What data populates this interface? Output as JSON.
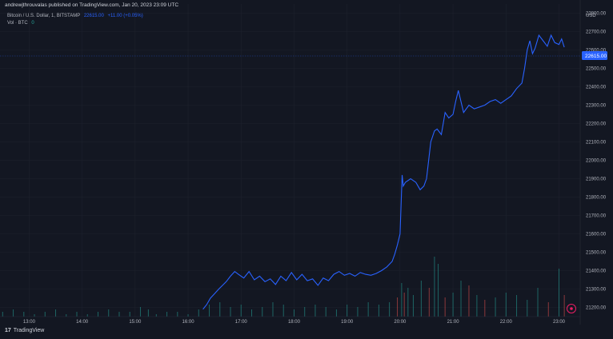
{
  "header": {
    "publisher": "andrewjthrouvalas published on TradingView.com, Jan 20, 2023 23:09 UTC",
    "symbol": "Bitcoin / U.S. Dollar, 1, BITSTAMP",
    "last_price": "22615.00",
    "change": "+11.00 (+0.05%)",
    "volume_label": "Vol · BTC",
    "volume_value": "0"
  },
  "branding": {
    "logo_text": "17",
    "name": "TradingView"
  },
  "colors": {
    "background": "#131722",
    "line": "#2962ff",
    "vol_up": "#26a69a",
    "vol_down": "#ef5350",
    "text": "#b2b5be"
  },
  "chart_data": {
    "type": "line",
    "ylabel": "USD",
    "ylim": [
      21150,
      22850
    ],
    "yticks": [
      "22800.00",
      "22700.00",
      "22600.00",
      "22500.00",
      "22400.00",
      "22300.00",
      "22200.00",
      "22100.00",
      "22000.00",
      "21900.00",
      "21800.00",
      "21700.00",
      "21600.00",
      "21500.00",
      "21400.00",
      "21300.00",
      "21200.00"
    ],
    "xticks": [
      "13:00",
      "14:00",
      "15:00",
      "16:00",
      "17:00",
      "18:00",
      "19:00",
      "20:00",
      "21:00",
      "22:00",
      "23:00"
    ],
    "x_range_hours": [
      12.45,
      23.4
    ],
    "series": [
      {
        "x_hours": [
          16.28,
          16.35,
          16.42,
          16.5,
          16.58,
          16.65,
          16.72,
          16.8,
          16.88,
          16.95,
          17.05,
          17.15,
          17.25,
          17.35,
          17.45,
          17.55,
          17.65,
          17.75,
          17.85,
          17.95,
          18.05,
          18.15,
          18.25,
          18.35,
          18.45,
          18.55,
          18.65,
          18.75,
          18.85,
          18.95,
          19.05,
          19.15,
          19.25,
          19.35,
          19.45,
          19.55,
          19.65,
          19.75,
          19.85,
          19.9,
          19.95,
          20.0,
          20.04,
          20.06,
          20.1,
          20.2,
          20.3,
          20.38,
          20.45,
          20.5,
          20.58,
          20.65,
          20.7,
          20.78,
          20.85,
          20.92,
          21.0,
          21.05,
          21.1,
          21.2,
          21.3,
          21.4,
          21.5,
          21.6,
          21.7,
          21.8,
          21.9,
          22.0,
          22.1,
          22.2,
          22.3,
          22.35,
          22.4,
          22.45,
          22.5,
          22.55,
          22.62,
          22.7,
          22.78,
          22.85,
          22.92,
          23.0,
          23.05,
          23.1
        ],
        "values": [
          21190,
          21215,
          21250,
          21275,
          21300,
          21320,
          21340,
          21370,
          21395,
          21380,
          21360,
          21395,
          21350,
          21370,
          21340,
          21355,
          21325,
          21370,
          21345,
          21390,
          21350,
          21380,
          21345,
          21355,
          21320,
          21360,
          21345,
          21380,
          21395,
          21375,
          21385,
          21370,
          21390,
          21380,
          21375,
          21385,
          21400,
          21420,
          21450,
          21490,
          21540,
          21600,
          21920,
          21860,
          21880,
          21900,
          21880,
          21840,
          21860,
          21900,
          22100,
          22160,
          22170,
          22140,
          22260,
          22230,
          22250,
          22320,
          22380,
          22260,
          22300,
          22280,
          22290,
          22300,
          22320,
          22330,
          22310,
          22330,
          22350,
          22390,
          22420,
          22500,
          22600,
          22650,
          22580,
          22610,
          22680,
          22650,
          22620,
          22680,
          22640,
          22630,
          22660,
          22615
        ]
      }
    ],
    "volume": {
      "x_hours": [
        12.5,
        12.7,
        12.9,
        13.1,
        13.3,
        13.5,
        13.7,
        13.9,
        14.1,
        14.3,
        14.5,
        14.7,
        14.9,
        15.1,
        15.25,
        15.4,
        15.6,
        15.8,
        16.0,
        16.2,
        16.4,
        16.6,
        16.8,
        17.0,
        17.2,
        17.4,
        17.6,
        17.8,
        18.0,
        18.2,
        18.4,
        18.6,
        18.8,
        19.0,
        19.2,
        19.4,
        19.6,
        19.8,
        19.95,
        20.03,
        20.08,
        20.15,
        20.25,
        20.4,
        20.55,
        20.65,
        20.72,
        20.85,
        21.0,
        21.15,
        21.3,
        21.45,
        21.6,
        21.8,
        22.0,
        22.2,
        22.4,
        22.6,
        22.8,
        23.0,
        23.1
      ],
      "values": [
        2,
        3,
        2,
        1,
        2,
        3,
        1,
        2,
        1,
        2,
        3,
        2,
        2,
        4,
        3,
        1,
        2,
        2,
        1,
        3,
        5,
        6,
        4,
        5,
        3,
        4,
        6,
        5,
        3,
        4,
        5,
        4,
        3,
        5,
        4,
        6,
        5,
        6,
        8,
        14,
        10,
        12,
        9,
        15,
        12,
        25,
        22,
        8,
        10,
        15,
        13,
        9,
        7,
        8,
        10,
        9,
        7,
        12,
        6,
        20,
        9
      ],
      "down": [
        false,
        false,
        false,
        false,
        false,
        false,
        false,
        false,
        false,
        false,
        false,
        false,
        false,
        false,
        false,
        false,
        false,
        false,
        false,
        false,
        false,
        false,
        false,
        false,
        false,
        false,
        false,
        false,
        false,
        false,
        false,
        false,
        false,
        false,
        false,
        false,
        false,
        false,
        true,
        false,
        true,
        false,
        false,
        false,
        true,
        false,
        false,
        true,
        false,
        false,
        true,
        false,
        true,
        false,
        false,
        false,
        false,
        false,
        true,
        false,
        true
      ]
    }
  }
}
